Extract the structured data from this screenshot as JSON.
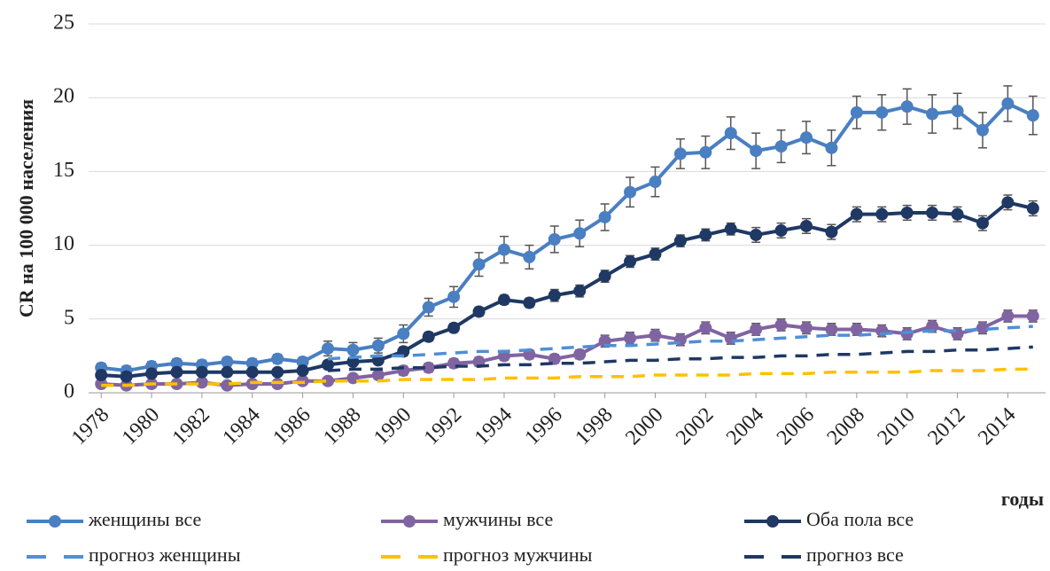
{
  "chart_data": {
    "type": "line",
    "y_label": "CR на 100 000 населения",
    "x_label": "годы",
    "x": [
      1978,
      1979,
      1980,
      1981,
      1982,
      1983,
      1984,
      1985,
      1986,
      1987,
      1988,
      1989,
      1990,
      1991,
      1992,
      1993,
      1994,
      1995,
      1996,
      1997,
      1998,
      1999,
      2000,
      2001,
      2002,
      2003,
      2004,
      2005,
      2006,
      2007,
      2008,
      2009,
      2010,
      2011,
      2012,
      2013,
      2014,
      2015
    ],
    "xlim": [
      1977.5,
      2015.5
    ],
    "xticks": [
      1978,
      1980,
      1982,
      1984,
      1986,
      1988,
      1990,
      1992,
      1994,
      1996,
      1998,
      2000,
      2002,
      2004,
      2006,
      2008,
      2010,
      2012,
      2014
    ],
    "ylim": [
      0,
      25
    ],
    "yticks": [
      0,
      5,
      10,
      15,
      20,
      25
    ],
    "grid": true,
    "series": [
      {
        "name": "женщины все",
        "color": "#4a7fc1",
        "style": "solid",
        "values": [
          1.7,
          1.5,
          1.8,
          2.0,
          1.9,
          2.1,
          2.0,
          2.3,
          2.1,
          3.0,
          2.9,
          3.2,
          4.0,
          5.8,
          6.5,
          8.7,
          9.7,
          9.2,
          10.4,
          10.8,
          11.9,
          13.6,
          14.3,
          16.2,
          16.3,
          17.6,
          16.4,
          16.7,
          17.3,
          16.6,
          19.0,
          19.0,
          19.4,
          18.9,
          19.1,
          17.8,
          19.6,
          18.8
        ],
        "errors": [
          0.3,
          0.3,
          0.3,
          0.3,
          0.3,
          0.3,
          0.3,
          0.3,
          0.3,
          0.5,
          0.5,
          0.5,
          0.6,
          0.6,
          0.7,
          0.8,
          0.9,
          0.8,
          0.9,
          0.9,
          0.9,
          1.0,
          1.0,
          1.0,
          1.1,
          1.1,
          1.2,
          1.1,
          1.1,
          1.2,
          1.1,
          1.2,
          1.2,
          1.3,
          1.2,
          1.2,
          1.2,
          1.3
        ]
      },
      {
        "name": "мужчины все",
        "color": "#8064a2",
        "style": "solid",
        "values": [
          0.6,
          0.5,
          0.6,
          0.6,
          0.7,
          0.5,
          0.6,
          0.6,
          0.8,
          0.8,
          1.0,
          1.2,
          1.5,
          1.7,
          2.0,
          2.1,
          2.5,
          2.6,
          2.3,
          2.6,
          3.5,
          3.7,
          3.9,
          3.6,
          4.4,
          3.7,
          4.3,
          4.6,
          4.4,
          4.3,
          4.3,
          4.2,
          4.0,
          4.5,
          4.0,
          4.4,
          5.2,
          5.2
        ],
        "errors": [
          0.2,
          0.2,
          0.2,
          0.2,
          0.2,
          0.2,
          0.2,
          0.2,
          0.2,
          0.2,
          0.2,
          0.2,
          0.3,
          0.3,
          0.3,
          0.3,
          0.3,
          0.3,
          0.3,
          0.3,
          0.4,
          0.4,
          0.4,
          0.4,
          0.4,
          0.4,
          0.4,
          0.4,
          0.4,
          0.4,
          0.4,
          0.4,
          0.4,
          0.4,
          0.4,
          0.4,
          0.4,
          0.4
        ]
      },
      {
        "name": "Оба пола все",
        "color": "#1f3864",
        "style": "solid",
        "values": [
          1.2,
          1.1,
          1.3,
          1.4,
          1.4,
          1.4,
          1.4,
          1.4,
          1.5,
          1.9,
          2.1,
          2.2,
          2.8,
          3.8,
          4.4,
          5.5,
          6.3,
          6.1,
          6.6,
          6.9,
          7.9,
          8.9,
          9.4,
          10.3,
          10.7,
          11.1,
          10.7,
          11.0,
          11.3,
          10.9,
          12.1,
          12.1,
          12.2,
          12.2,
          12.1,
          11.5,
          12.9,
          12.5
        ],
        "errors": [
          0.2,
          0.2,
          0.2,
          0.2,
          0.2,
          0.2,
          0.2,
          0.2,
          0.2,
          0.2,
          0.2,
          0.2,
          0.3,
          0.3,
          0.3,
          0.3,
          0.3,
          0.3,
          0.4,
          0.4,
          0.4,
          0.4,
          0.4,
          0.4,
          0.4,
          0.4,
          0.5,
          0.5,
          0.5,
          0.5,
          0.5,
          0.5,
          0.5,
          0.5,
          0.5,
          0.5,
          0.5,
          0.5
        ]
      },
      {
        "name": "прогноз женщины",
        "color": "#4f8fd6",
        "style": "dashed",
        "values": [
          null,
          null,
          null,
          null,
          null,
          null,
          null,
          null,
          null,
          2.3,
          2.4,
          2.5,
          2.5,
          2.6,
          2.7,
          2.8,
          2.8,
          2.9,
          3.0,
          3.1,
          3.2,
          3.2,
          3.3,
          3.4,
          3.5,
          3.5,
          3.6,
          3.7,
          3.8,
          3.9,
          3.9,
          4.0,
          4.1,
          4.2,
          4.2,
          4.3,
          4.4,
          4.5
        ]
      },
      {
        "name": "прогноз мужчины",
        "color": "#ffc000",
        "style": "dashed",
        "values": [
          0.5,
          0.5,
          0.6,
          0.6,
          0.6,
          0.6,
          0.7,
          0.7,
          0.7,
          0.8,
          0.8,
          0.8,
          0.9,
          0.9,
          0.9,
          0.9,
          1.0,
          1.0,
          1.0,
          1.1,
          1.1,
          1.1,
          1.2,
          1.2,
          1.2,
          1.2,
          1.3,
          1.3,
          1.3,
          1.4,
          1.4,
          1.4,
          1.4,
          1.5,
          1.5,
          1.5,
          1.6,
          1.6
        ]
      },
      {
        "name": "прогноз все",
        "color": "#1f3864",
        "style": "dashed",
        "values": [
          null,
          null,
          null,
          null,
          null,
          null,
          null,
          null,
          null,
          1.5,
          1.6,
          1.6,
          1.7,
          1.7,
          1.8,
          1.8,
          1.9,
          1.9,
          2.0,
          2.0,
          2.1,
          2.2,
          2.2,
          2.3,
          2.3,
          2.4,
          2.4,
          2.5,
          2.5,
          2.6,
          2.6,
          2.7,
          2.8,
          2.8,
          2.9,
          2.9,
          3.0,
          3.1
        ]
      }
    ]
  }
}
